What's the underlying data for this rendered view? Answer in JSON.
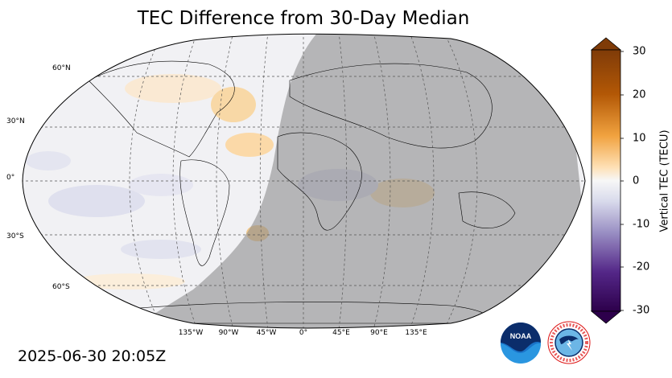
{
  "title": "TEC Difference from 30-Day Median",
  "timestamp": "2025-06-30 20:05Z",
  "colorbar": {
    "label": "Vertical TEC (TECU)",
    "ticks": [
      "30",
      "20",
      "10",
      "0",
      "-10",
      "-20",
      "-30"
    ],
    "min": -30,
    "max": 30
  },
  "latitude_labels": [
    "60°N",
    "30°N",
    "0°",
    "30°S",
    "60°S"
  ],
  "longitude_labels": [
    "135°W",
    "90°W",
    "45°W",
    "0°",
    "45°E",
    "90°E",
    "135°E"
  ],
  "logos": {
    "noaa": "NOAA",
    "nws": "NATIONAL WEATHER SERVICE"
  },
  "colors": {
    "night_shade": "#8a8a8a",
    "positive": "#b35806",
    "negative": "#2d004b",
    "neutral": "#f7f7f7"
  }
}
